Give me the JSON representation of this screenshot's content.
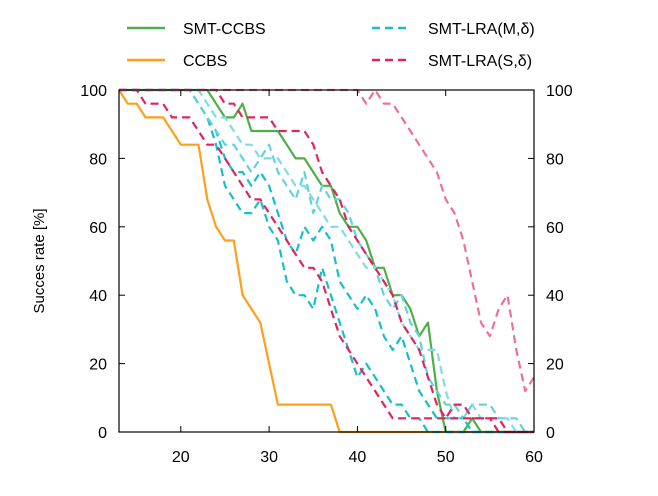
{
  "chart_data": {
    "type": "line",
    "title": "",
    "xlabel": "",
    "ylabel": "Succes rate [%]",
    "xlim": [
      13,
      60
    ],
    "ylim": [
      0,
      100
    ],
    "x_ticks": [
      "20",
      "30",
      "40",
      "50",
      "60"
    ],
    "y_ticks": [
      "0",
      "20",
      "40",
      "60",
      "80",
      "100"
    ],
    "y_ticks_right": [
      "0",
      "20",
      "40",
      "60",
      "80",
      "100"
    ],
    "grid": false,
    "legend": "top, two columns",
    "series": [
      {
        "name": "SMT-CCBS",
        "color": "#4daf4a",
        "dash": "solid",
        "x": [
          13,
          14,
          15,
          16,
          17,
          18,
          19,
          20,
          21,
          22,
          23,
          24,
          25,
          26,
          27,
          28,
          29,
          30,
          31,
          32,
          33,
          34,
          35,
          36,
          37,
          38,
          39,
          40,
          41,
          42,
          43,
          44,
          45,
          46,
          47,
          48,
          49,
          50,
          51,
          52,
          53,
          54,
          55,
          56,
          57,
          58,
          59,
          60
        ],
        "y": [
          100,
          100,
          100,
          100,
          100,
          100,
          100,
          100,
          100,
          100,
          100,
          96,
          92,
          92,
          96,
          88,
          88,
          88,
          88,
          84,
          80,
          80,
          76,
          72,
          72,
          64,
          60,
          60,
          56,
          48,
          48,
          40,
          40,
          36,
          28,
          32,
          12,
          0,
          0,
          0,
          4,
          0,
          0,
          0,
          0,
          0,
          0,
          0
        ]
      },
      {
        "name": "CCBS",
        "color": "#ff9f1c",
        "dash": "solid",
        "x": [
          13,
          14,
          15,
          16,
          17,
          18,
          19,
          20,
          21,
          22,
          23,
          24,
          25,
          26,
          27,
          28,
          29,
          30,
          31,
          32,
          33,
          34,
          35,
          36,
          37,
          38,
          39,
          40,
          41,
          42,
          43,
          44,
          45,
          46,
          47,
          48,
          49,
          50,
          51,
          52,
          53,
          54,
          55,
          56,
          57,
          58,
          59,
          60
        ],
        "y": [
          100,
          96,
          96,
          92,
          92,
          92,
          88,
          84,
          84,
          84,
          68,
          60,
          56,
          56,
          40,
          36,
          32,
          20,
          8,
          8,
          8,
          8,
          8,
          8,
          8,
          0,
          0,
          0,
          0,
          0,
          0,
          0,
          0,
          0,
          0,
          0,
          0,
          0,
          0,
          0,
          0,
          0,
          0,
          0,
          0,
          0,
          0,
          0
        ]
      },
      {
        "name": "SMT-LRA(M,δ)",
        "color": "#17becf",
        "dash": "dashed",
        "x": [
          13,
          14,
          15,
          16,
          17,
          18,
          19,
          20,
          21,
          22,
          23,
          24,
          25,
          26,
          27,
          28,
          29,
          30,
          31,
          32,
          33,
          34,
          35,
          36,
          37,
          38,
          39,
          40,
          41,
          42,
          43,
          44,
          45,
          46,
          47,
          48,
          49,
          50,
          51,
          52,
          53,
          54,
          55,
          56,
          57,
          58,
          59,
          60
        ],
        "y": [
          100,
          100,
          100,
          100,
          100,
          100,
          100,
          100,
          100,
          96,
          92,
          84,
          72,
          68,
          64,
          64,
          68,
          60,
          56,
          44,
          40,
          40,
          36,
          48,
          40,
          32,
          24,
          16,
          20,
          16,
          12,
          8,
          8,
          4,
          4,
          0,
          0,
          0,
          0,
          0,
          0,
          0,
          0,
          0,
          0,
          0,
          0,
          0
        ]
      },
      {
        "name": "SMT-LRA(M,δ) 2",
        "color": "#17becf",
        "dash": "dashed",
        "x": [
          13,
          14,
          15,
          16,
          17,
          18,
          19,
          20,
          21,
          22,
          23,
          24,
          25,
          26,
          27,
          28,
          29,
          30,
          31,
          32,
          33,
          34,
          35,
          36,
          37,
          38,
          39,
          40,
          41,
          42,
          43,
          44,
          45,
          46,
          47,
          48,
          49,
          50,
          51,
          52,
          53,
          54,
          55,
          56,
          57,
          58,
          59,
          60
        ],
        "y": [
          100,
          100,
          100,
          100,
          100,
          100,
          100,
          100,
          100,
          96,
          92,
          88,
          80,
          76,
          76,
          72,
          76,
          72,
          64,
          56,
          52,
          60,
          56,
          60,
          56,
          44,
          40,
          36,
          40,
          36,
          28,
          24,
          28,
          20,
          12,
          8,
          4,
          4,
          4,
          4,
          0,
          0,
          0,
          0,
          0,
          0,
          0,
          0
        ]
      },
      {
        "name": "SMT-LRA(M,δ) 3",
        "color": "#62d2e0",
        "dash": "dashed",
        "x": [
          13,
          14,
          15,
          16,
          17,
          18,
          19,
          20,
          21,
          22,
          23,
          24,
          25,
          26,
          27,
          28,
          29,
          30,
          31,
          32,
          33,
          34,
          35,
          36,
          37,
          38,
          39,
          40,
          41,
          42,
          43,
          44,
          45,
          46,
          47,
          48,
          49,
          50,
          51,
          52,
          53,
          54,
          55,
          56,
          57,
          58,
          59,
          60
        ],
        "y": [
          100,
          100,
          100,
          100,
          100,
          100,
          100,
          100,
          100,
          96,
          92,
          88,
          84,
          84,
          80,
          76,
          80,
          84,
          76,
          72,
          68,
          76,
          64,
          72,
          68,
          68,
          64,
          56,
          52,
          48,
          40,
          36,
          40,
          32,
          28,
          16,
          12,
          8,
          8,
          4,
          8,
          8,
          8,
          4,
          4,
          4,
          0,
          0
        ]
      },
      {
        "name": "SMT-LRA(M,δ) 4",
        "color": "#7fdbe6",
        "dash": "dashed",
        "x": [
          13,
          14,
          15,
          16,
          17,
          18,
          19,
          20,
          21,
          22,
          23,
          24,
          25,
          26,
          27,
          28,
          29,
          30,
          31,
          32,
          33,
          34,
          35,
          36,
          37,
          38,
          39,
          40,
          41,
          42,
          43,
          44,
          45,
          46,
          47,
          48,
          49,
          50,
          51,
          52,
          53,
          54,
          55,
          56,
          57,
          58,
          59,
          60
        ],
        "y": [
          100,
          100,
          100,
          100,
          100,
          100,
          100,
          100,
          100,
          100,
          96,
          92,
          92,
          88,
          84,
          84,
          80,
          80,
          80,
          76,
          72,
          72,
          68,
          64,
          60,
          60,
          56,
          52,
          48,
          48,
          44,
          40,
          32,
          28,
          24,
          24,
          24,
          12,
          4,
          4,
          8,
          4,
          4,
          4,
          4,
          0,
          0,
          0
        ]
      },
      {
        "name": "SMT-LRA(S,δ)",
        "color": "#e0245e",
        "dash": "dashed",
        "x": [
          13,
          14,
          15,
          16,
          17,
          18,
          19,
          20,
          21,
          22,
          23,
          24,
          25,
          26,
          27,
          28,
          29,
          30,
          31,
          32,
          33,
          34,
          35,
          36,
          37,
          38,
          39,
          40,
          41,
          42,
          43,
          44,
          45,
          46,
          47,
          48,
          49,
          50,
          51,
          52,
          53,
          54,
          55,
          56,
          57,
          58,
          59,
          60
        ],
        "y": [
          100,
          100,
          100,
          96,
          96,
          96,
          92,
          92,
          92,
          88,
          84,
          84,
          80,
          76,
          72,
          68,
          68,
          64,
          60,
          56,
          52,
          48,
          48,
          44,
          36,
          28,
          24,
          20,
          16,
          12,
          8,
          4,
          4,
          4,
          4,
          4,
          4,
          4,
          4,
          4,
          4,
          4,
          4,
          4,
          0,
          0,
          0,
          0
        ]
      },
      {
        "name": "SMT-LRA(S,δ) 2",
        "color": "#e0245e",
        "dash": "dashed",
        "x": [
          13,
          14,
          15,
          16,
          17,
          18,
          19,
          20,
          21,
          22,
          23,
          24,
          25,
          26,
          27,
          28,
          29,
          30,
          31,
          32,
          33,
          34,
          35,
          36,
          37,
          38,
          39,
          40,
          41,
          42,
          43,
          44,
          45,
          46,
          47,
          48,
          49,
          50,
          51,
          52,
          53,
          54,
          55,
          56,
          57,
          58,
          59,
          60
        ],
        "y": [
          100,
          100,
          100,
          100,
          100,
          100,
          100,
          100,
          100,
          100,
          100,
          100,
          96,
          96,
          92,
          92,
          92,
          92,
          88,
          88,
          88,
          88,
          84,
          76,
          72,
          68,
          60,
          56,
          52,
          48,
          44,
          40,
          32,
          28,
          24,
          16,
          8,
          4,
          8,
          8,
          4,
          4,
          4,
          0,
          0,
          0,
          0,
          0
        ]
      },
      {
        "name": "SMT-LRA(S,δ) 3",
        "color": "#ee6f9f",
        "dash": "dashed",
        "x": [
          13,
          14,
          15,
          16,
          17,
          18,
          19,
          20,
          21,
          22,
          23,
          24,
          25,
          26,
          27,
          28,
          29,
          30,
          31,
          32,
          33,
          34,
          35,
          36,
          37,
          38,
          39,
          40,
          41,
          42,
          43,
          44,
          45,
          46,
          47,
          48,
          49,
          50,
          51,
          52,
          53,
          54,
          55,
          56,
          57,
          58,
          59,
          60
        ],
        "y": [
          100,
          100,
          100,
          100,
          100,
          100,
          100,
          100,
          100,
          100,
          100,
          100,
          100,
          100,
          100,
          100,
          100,
          100,
          100,
          100,
          100,
          100,
          100,
          100,
          100,
          100,
          100,
          100,
          96,
          100,
          96,
          96,
          92,
          88,
          84,
          80,
          76,
          68,
          64,
          56,
          44,
          32,
          28,
          36,
          40,
          24,
          12,
          16
        ]
      }
    ],
    "legend_entries": [
      {
        "label": "SMT-CCBS",
        "color": "#4daf4a",
        "dash": "solid"
      },
      {
        "label": "SMT-LRA(M,δ)",
        "color": "#17becf",
        "dash": "dashed"
      },
      {
        "label": "CCBS",
        "color": "#ff9f1c",
        "dash": "solid"
      },
      {
        "label": "SMT-LRA(S,δ)",
        "color": "#e0245e",
        "dash": "dashed"
      }
    ]
  }
}
